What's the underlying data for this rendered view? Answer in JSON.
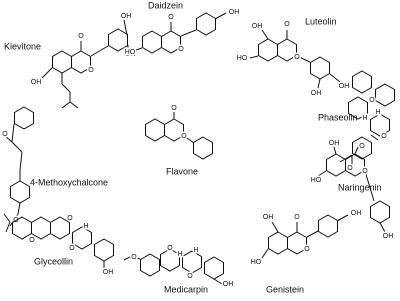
{
  "molecules": [
    {
      "name": "Kievitone",
      "atoms": [
        "O",
        "OH",
        "OH",
        "OH",
        "O"
      ]
    },
    {
      "name": "Daidzein",
      "atoms": [
        "O",
        "OH",
        "HO",
        "O"
      ]
    },
    {
      "name": "Luteolin",
      "atoms": [
        "OH",
        "O",
        "HO",
        "O",
        "OH",
        "OH"
      ]
    },
    {
      "name": "Phaseolin",
      "atoms": [
        "O",
        "O",
        "O",
        "H",
        "H"
      ]
    },
    {
      "name": "4-Methoxychalcone",
      "atoms": [
        "O",
        "O"
      ]
    },
    {
      "name": "Flavone",
      "atoms": [
        "O",
        "O"
      ]
    },
    {
      "name": "Naringenin",
      "atoms": [
        "OH",
        "O",
        "HO",
        "O",
        "OH"
      ]
    },
    {
      "name": "Glyceollin",
      "atoms": [
        "O",
        "O",
        "O",
        "H",
        "OH"
      ]
    },
    {
      "name": "Medicarpin",
      "atoms": [
        "O",
        "O",
        "O",
        "H",
        "H",
        "OH"
      ]
    },
    {
      "name": "Genistein",
      "atoms": [
        "OH",
        "O",
        "OH",
        "HO",
        "O"
      ]
    }
  ]
}
